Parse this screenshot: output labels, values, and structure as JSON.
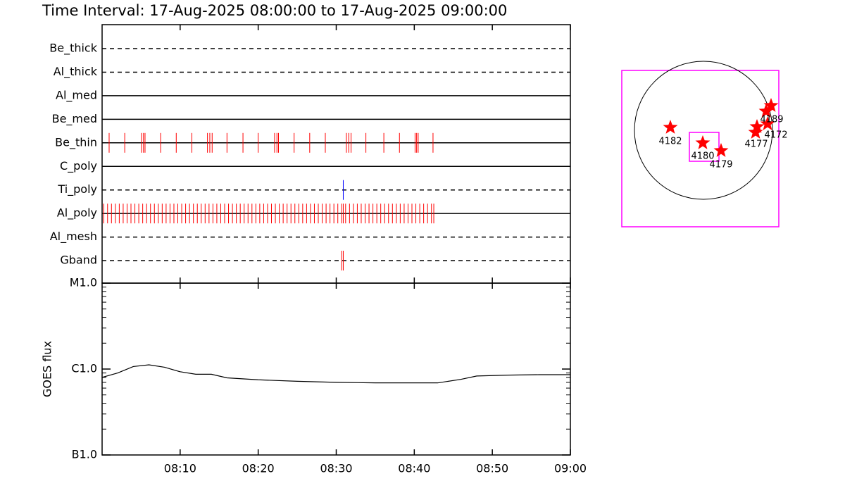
{
  "chart_data": [
    {
      "type": "timeline",
      "title": "Time Interval: 17-Aug-2025 08:00:00 to 17-Aug-2025 09:00:00",
      "xlim": [
        0,
        60
      ],
      "xticks": [
        10,
        20,
        30,
        40,
        50,
        60
      ],
      "filters": [
        {
          "name": "Be_thick",
          "style": "dashed",
          "color": "#ff0000",
          "times": []
        },
        {
          "name": "Al_thick",
          "style": "dashed",
          "color": "#ff0000",
          "times": []
        },
        {
          "name": "Al_med",
          "style": "solid",
          "color": "#ff0000",
          "times": []
        },
        {
          "name": "Be_med",
          "style": "solid",
          "color": "#ff0000",
          "times": []
        },
        {
          "name": "Be_thin",
          "style": "solid",
          "color": "#ff0000",
          "times": [
            0.9,
            2.9,
            5.05,
            5.3,
            5.5,
            7.5,
            9.5,
            11.5,
            13.5,
            13.8,
            14.1,
            16.0,
            18.05,
            20.0,
            22.1,
            22.4,
            22.6,
            24.6,
            26.6,
            28.6,
            31.3,
            31.6,
            31.9,
            33.8,
            36.1,
            38.1,
            40.1,
            40.3,
            40.5,
            42.4
          ]
        },
        {
          "name": "C_poly",
          "style": "solid",
          "color": "#ff0000",
          "times": []
        },
        {
          "name": "Ti_poly",
          "style": "dashed",
          "color": "#0000ff",
          "times": [
            30.9
          ]
        },
        {
          "name": "Al_poly",
          "style": "solid",
          "color": "#ff0000",
          "times": [
            0.2,
            0.7,
            1.2,
            1.7,
            2.2,
            2.7,
            3.2,
            3.7,
            4.2,
            4.7,
            5.2,
            5.7,
            6.2,
            6.7,
            7.2,
            7.7,
            8.2,
            8.7,
            9.2,
            9.7,
            10.2,
            10.7,
            11.2,
            11.7,
            12.2,
            12.7,
            13.2,
            13.7,
            14.2,
            14.7,
            15.2,
            15.7,
            16.2,
            16.7,
            17.2,
            17.7,
            18.2,
            18.7,
            19.2,
            19.7,
            20.2,
            20.7,
            21.2,
            21.7,
            22.2,
            22.7,
            23.2,
            23.7,
            24.2,
            24.7,
            25.2,
            25.7,
            26.2,
            26.7,
            27.2,
            27.7,
            28.2,
            28.7,
            29.2,
            29.7,
            30.2,
            30.7,
            30.9,
            31.2,
            31.7,
            32.2,
            32.7,
            33.2,
            33.7,
            34.2,
            34.7,
            35.2,
            35.7,
            36.2,
            36.7,
            37.2,
            37.7,
            38.2,
            38.7,
            39.2,
            39.7,
            40.2,
            40.7,
            41.2,
            41.7,
            42.2,
            42.5
          ]
        },
        {
          "name": "Al_mesh",
          "style": "dashed",
          "color": "#ff0000",
          "times": []
        },
        {
          "name": "Gband",
          "style": "dashed",
          "color": "#ff0000",
          "times": [
            30.7,
            30.9
          ]
        }
      ]
    },
    {
      "type": "line",
      "ylabel": "GOES flux",
      "log_scale": true,
      "color": "#000000",
      "xlim": [
        0,
        60
      ],
      "xticks": [
        {
          "value": 10,
          "label": "08:10"
        },
        {
          "value": 20,
          "label": "08:20"
        },
        {
          "value": 30,
          "label": "08:30"
        },
        {
          "value": 40,
          "label": "08:40"
        },
        {
          "value": 50,
          "label": "08:50"
        },
        {
          "value": 60,
          "label": "09:00"
        }
      ],
      "ylim": [
        1e-07,
        1e-05
      ],
      "yticks": [
        {
          "value": 1e-07,
          "label": "B1.0"
        },
        {
          "value": 1e-06,
          "label": "C1.0"
        },
        {
          "value": 1e-05,
          "label": "M1.0"
        }
      ],
      "x": [
        0,
        2,
        4,
        6,
        8,
        10,
        12,
        14,
        16,
        20,
        25,
        30,
        35,
        40,
        43,
        46,
        48,
        52,
        56,
        60
      ],
      "values": [
        8e-07,
        9e-07,
        1.07e-06,
        1.12e-06,
        1.05e-06,
        9.3e-07,
        8.7e-07,
        8.7e-07,
        7.9e-07,
        7.5e-07,
        7.2e-07,
        7e-07,
        6.9e-07,
        6.9e-07,
        6.9e-07,
        7.6e-07,
        8.3e-07,
        8.5e-07,
        8.6e-07,
        8.6e-07
      ]
    },
    {
      "type": "map",
      "regions": [
        "4182",
        "4180",
        "4179",
        "4177",
        "4172",
        "4189"
      ]
    }
  ]
}
